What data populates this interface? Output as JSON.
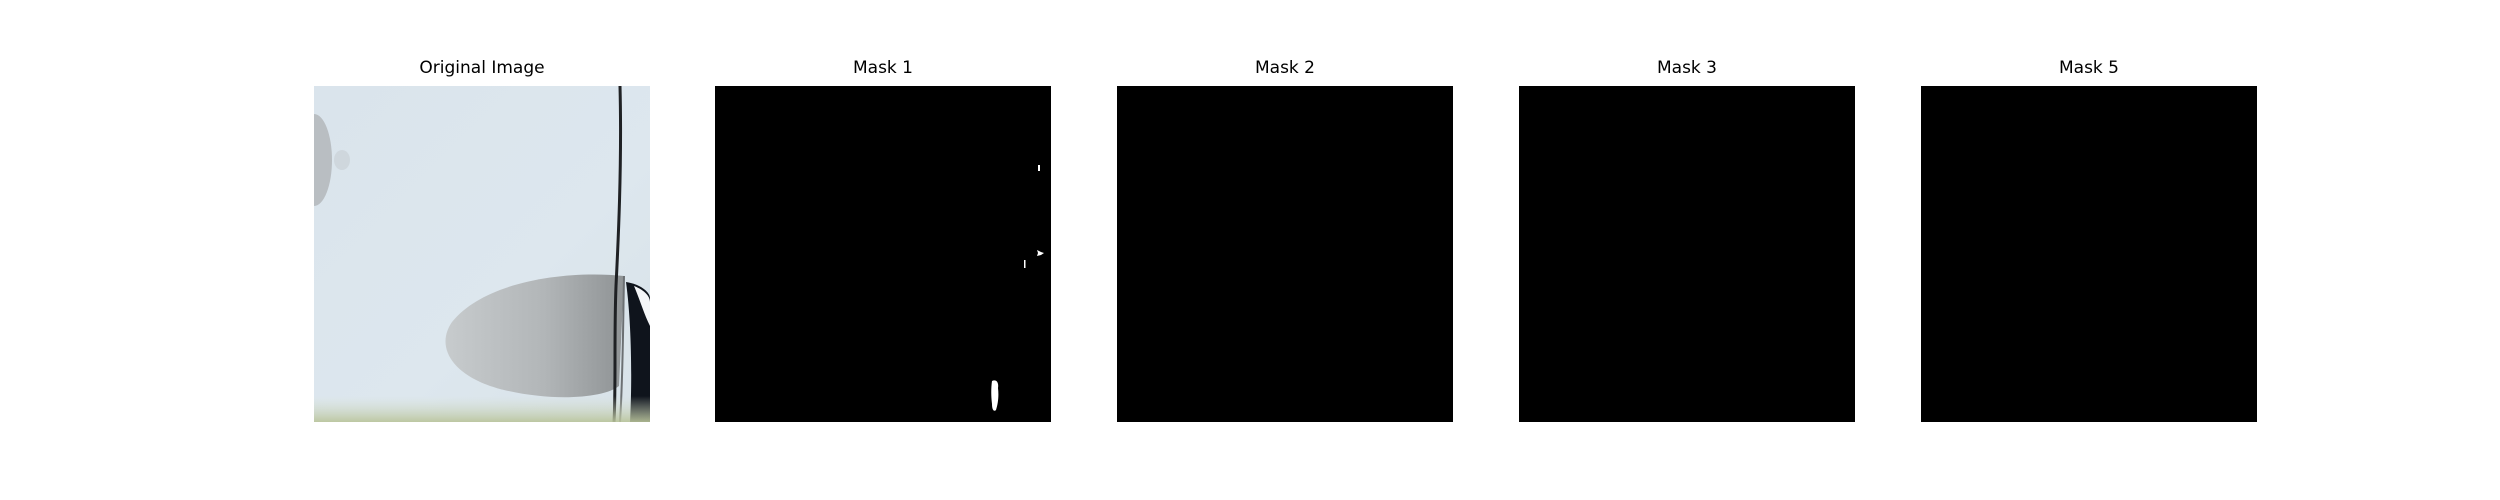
{
  "panels": [
    {
      "title": "Original Image",
      "kind": "photo",
      "colors": {
        "surface": "#dbe5ed",
        "shadow": "#a7abad",
        "shadow_light": "#c9cdcf",
        "edge": "#1f2124",
        "dark_gap": "#0f141c"
      }
    },
    {
      "title": "Mask 1",
      "kind": "mask",
      "colors": {
        "background": "#000000",
        "foreground": "#ffffff"
      }
    },
    {
      "title": "Mask 2",
      "kind": "mask",
      "colors": {
        "background": "#000000",
        "foreground": "#ffffff"
      }
    },
    {
      "title": "Mask 3",
      "kind": "mask",
      "colors": {
        "background": "#000000",
        "foreground": "#ffffff"
      }
    },
    {
      "title": "Mask 5",
      "kind": "mask",
      "colors": {
        "background": "#000000",
        "foreground": "#ffffff"
      }
    }
  ]
}
